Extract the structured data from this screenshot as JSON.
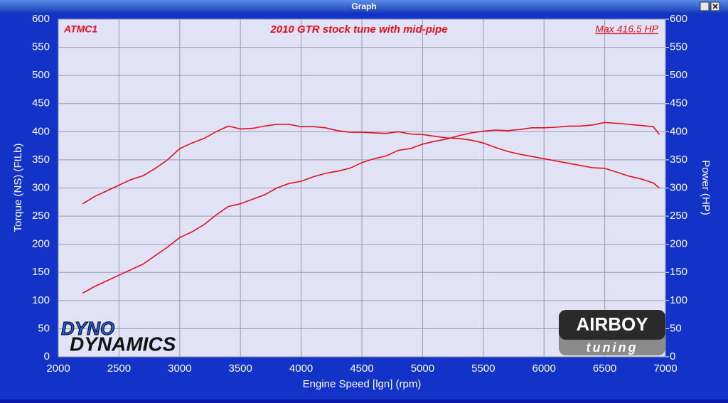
{
  "window_title": "Graph",
  "chart_data": {
    "type": "line",
    "title": "2010 GTR stock tune with mid-pipe",
    "run_label": "ATMC1",
    "annotation": "Max 416.5 HP",
    "xlabel": "Engine Speed [lgn] (rpm)",
    "ylabel": "Torque (NS) (FtLb)",
    "y2label": "Power (HP)",
    "xlim": [
      2000,
      7000
    ],
    "xticks": [
      2000,
      2500,
      3000,
      3500,
      4000,
      4500,
      5000,
      5500,
      6000,
      6500,
      7000
    ],
    "ylim": [
      0,
      600
    ],
    "yticks": [
      0,
      50,
      100,
      150,
      200,
      250,
      300,
      350,
      400,
      450,
      500,
      550,
      600
    ],
    "y2lim": [
      0,
      600
    ],
    "y2ticks": [
      0,
      50,
      100,
      150,
      200,
      250,
      300,
      350,
      400,
      450,
      500,
      550,
      600
    ],
    "grid": true,
    "x": [
      2200,
      2300,
      2400,
      2500,
      2600,
      2700,
      2800,
      2900,
      3000,
      3100,
      3200,
      3300,
      3400,
      3500,
      3600,
      3700,
      3800,
      3900,
      4000,
      4100,
      4200,
      4300,
      4400,
      4500,
      4600,
      4700,
      4800,
      4900,
      5000,
      5100,
      5200,
      5300,
      5400,
      5500,
      5600,
      5700,
      5800,
      5900,
      6000,
      6100,
      6200,
      6300,
      6400,
      6500,
      6600,
      6700,
      6800,
      6900,
      6950
    ],
    "series": [
      {
        "name": "Torque",
        "color": "#e0101c",
        "axis": "y",
        "values": [
          272,
          285,
          295,
          305,
          315,
          322,
          335,
          350,
          370,
          380,
          388,
          400,
          410,
          405,
          406,
          410,
          413,
          413,
          409,
          409,
          407,
          402,
          399,
          399,
          398,
          397,
          400,
          396,
          395,
          392,
          389,
          388,
          385,
          380,
          372,
          365,
          360,
          356,
          352,
          348,
          344,
          340,
          336,
          335,
          328,
          321,
          316,
          309,
          300
        ]
      },
      {
        "name": "Power",
        "color": "#e0101c",
        "axis": "y2",
        "values": [
          113,
          125,
          135,
          145,
          155,
          165,
          180,
          195,
          212,
          222,
          235,
          252,
          267,
          272,
          280,
          288,
          300,
          308,
          312,
          320,
          326,
          330,
          335,
          345,
          352,
          357,
          367,
          370,
          378,
          383,
          387,
          393,
          398,
          401,
          403,
          402,
          404,
          407,
          407,
          408,
          410,
          410,
          412,
          416.5,
          415,
          413,
          411,
          409,
          395
        ]
      }
    ]
  },
  "logos": {
    "left_top": "DYNO",
    "left_bottom": "DYNAMICS",
    "right_top": "AIRBOY",
    "right_bottom": "tuning"
  }
}
